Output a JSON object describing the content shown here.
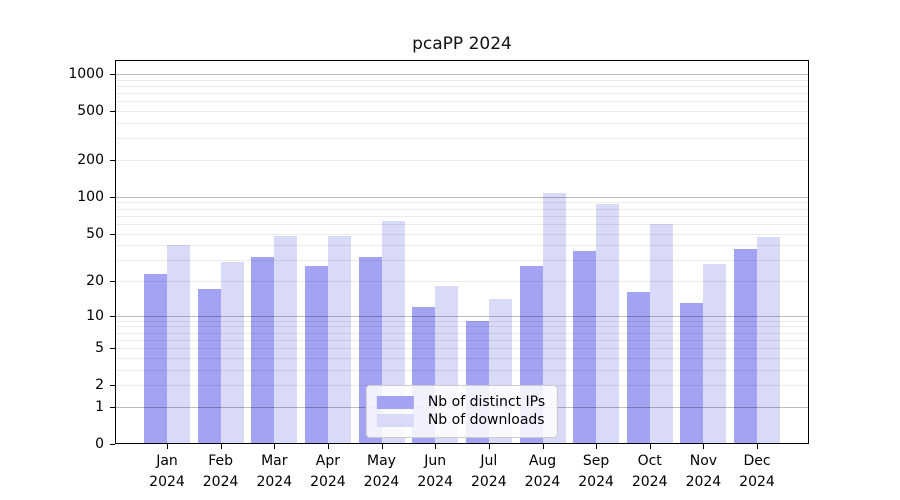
{
  "figure_title": "pcaPP 2024",
  "chart_data": {
    "type": "bar",
    "title": "pcaPP 2024",
    "categories": [
      "Jan",
      "Feb",
      "Mar",
      "Apr",
      "May",
      "Jun",
      "Jul",
      "Aug",
      "Sep",
      "Oct",
      "Nov",
      "Dec"
    ],
    "x_year_label": "2024",
    "series": [
      {
        "name": "Nb of distinct IPs",
        "color": "#a3a3f4",
        "values": [
          23,
          17,
          32,
          27,
          32,
          12,
          9,
          27,
          36,
          16,
          13,
          37
        ]
      },
      {
        "name": "Nb of downloads",
        "color": "#d9d9f8",
        "values": [
          40,
          29,
          48,
          48,
          64,
          18,
          14,
          108,
          87,
          60,
          28,
          47
        ]
      }
    ],
    "yscale": "log10(1+y)",
    "ylim": [
      0,
      1300
    ],
    "yticks": [
      0,
      1,
      2,
      5,
      10,
      20,
      50,
      100,
      200,
      500,
      1000
    ],
    "grid": {
      "major": [
        1,
        10,
        100,
        1000
      ],
      "minor_subs": [
        2,
        3,
        4,
        5,
        6,
        7,
        8,
        9
      ],
      "minor_decades": [
        1,
        10,
        100
      ]
    },
    "legend_position": "lower center"
  }
}
